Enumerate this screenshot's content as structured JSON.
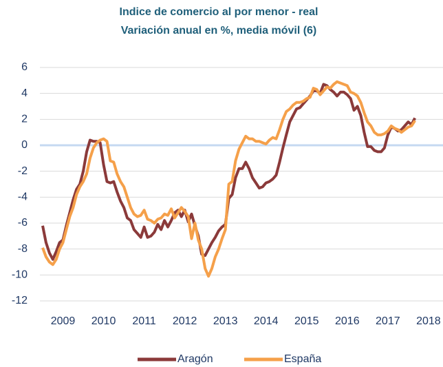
{
  "chart_data": {
    "type": "line",
    "title": "Indice de comercio al por menor - real",
    "subtitle": "Variación anual en %, media móvil (6)",
    "categories": [
      null,
      null,
      null,
      null,
      null,
      null,
      "2009",
      null,
      null,
      null,
      null,
      null,
      null,
      null,
      null,
      null,
      null,
      null,
      "2010",
      null,
      null,
      null,
      null,
      null,
      null,
      null,
      null,
      null,
      null,
      null,
      "2011",
      null,
      null,
      null,
      null,
      null,
      null,
      null,
      null,
      null,
      null,
      null,
      "2012",
      null,
      null,
      null,
      null,
      null,
      null,
      null,
      null,
      null,
      null,
      null,
      "2013",
      null,
      null,
      null,
      null,
      null,
      null,
      null,
      null,
      null,
      null,
      null,
      "2014",
      null,
      null,
      null,
      null,
      null,
      null,
      null,
      null,
      null,
      null,
      null,
      "2015",
      null,
      null,
      null,
      null,
      null,
      null,
      null,
      null,
      null,
      null,
      null,
      "2016",
      null,
      null,
      null,
      null,
      null,
      null,
      null,
      null,
      null,
      null,
      null,
      "2017",
      null,
      null,
      null,
      null,
      null,
      null,
      null,
      null,
      null,
      null,
      null,
      "2018",
      null,
      null
    ],
    "series": [
      {
        "name": "Aragón",
        "color": "#8b3a3a",
        "values": [
          -6.2,
          -7.5,
          -8.3,
          -8.8,
          -8.2,
          -7.5,
          -7.3,
          -6.2,
          -5.2,
          -4.2,
          -3.4,
          -3.0,
          -2.0,
          -0.5,
          0.4,
          0.3,
          0.3,
          0.2,
          -1.5,
          -2.8,
          -2.9,
          -2.8,
          -3.6,
          -4.3,
          -4.8,
          -5.6,
          -5.8,
          -6.5,
          -6.8,
          -7.1,
          -6.3,
          -7.1,
          -7.0,
          -6.7,
          -6.1,
          -6.5,
          -5.8,
          -6.3,
          -5.8,
          -5.2,
          -5.0,
          -5.5,
          -5.0,
          -5.9,
          -5.3,
          -6.2,
          -7.0,
          -8.4,
          -8.5,
          -8.0,
          -7.5,
          -7.1,
          -6.6,
          -6.3,
          -6.1,
          -4.1,
          -3.8,
          -2.5,
          -1.8,
          -1.8,
          -1.3,
          -1.8,
          -2.5,
          -2.9,
          -3.3,
          -3.2,
          -2.9,
          -2.8,
          -2.6,
          -2.3,
          -1.3,
          -0.2,
          0.8,
          1.8,
          2.3,
          2.8,
          2.9,
          3.2,
          3.5,
          3.8,
          4.2,
          4.2,
          4.0,
          4.7,
          4.6,
          4.3,
          4.1,
          3.8,
          4.1,
          4.1,
          3.9,
          3.6,
          2.7,
          3.0,
          2.3,
          1.0,
          -0.1,
          -0.1,
          -0.4,
          -0.5,
          -0.5,
          -0.2,
          0.8,
          1.4,
          1.3,
          1.1,
          1.2,
          1.5,
          1.8,
          1.6,
          2.1,
          null,
          null,
          null,
          null,
          null,
          null
        ]
      },
      {
        "name": "España",
        "color": "#f5a04a",
        "values": [
          -7.9,
          -8.6,
          -9.0,
          -9.2,
          -8.8,
          -8.0,
          -7.5,
          -6.5,
          -5.5,
          -4.8,
          -3.8,
          -3.2,
          -2.8,
          -2.2,
          -1.0,
          -0.2,
          0.2,
          0.4,
          0.5,
          0.3,
          -1.2,
          -1.3,
          -2.2,
          -2.8,
          -3.2,
          -4.0,
          -4.8,
          -5.3,
          -5.5,
          -5.4,
          -5.0,
          -5.7,
          -5.8,
          -6.0,
          -5.7,
          -5.6,
          -5.3,
          -5.4,
          -4.9,
          -5.6,
          -5.2,
          -4.8,
          -5.1,
          -5.5,
          -7.2,
          -6.0,
          -7.3,
          -8.0,
          -9.5,
          -10.1,
          -9.5,
          -8.6,
          -8.0,
          -7.2,
          -6.5,
          -3.0,
          -2.8,
          -1.2,
          -0.3,
          0.2,
          0.7,
          0.5,
          0.5,
          0.3,
          0.3,
          0.2,
          0.1,
          0.4,
          0.6,
          0.5,
          1.2,
          2.0,
          2.6,
          2.8,
          3.1,
          3.3,
          3.3,
          3.4,
          3.6,
          3.7,
          4.4,
          4.3,
          3.9,
          4.2,
          4.5,
          4.4,
          4.7,
          4.9,
          4.8,
          4.7,
          4.6,
          4.1,
          4.0,
          3.8,
          3.3,
          2.5,
          1.8,
          1.5,
          1.0,
          0.8,
          0.8,
          0.9,
          1.1,
          1.5,
          1.3,
          1.2,
          1.0,
          1.2,
          1.4,
          1.5,
          1.9,
          null,
          null,
          null,
          null,
          null,
          null
        ]
      }
    ],
    "ylim": [
      -12,
      6
    ],
    "yticks": [
      -12,
      -10,
      -8,
      -6,
      -4,
      -2,
      0,
      2,
      4,
      6
    ],
    "grid": true,
    "legend": "bottom"
  }
}
